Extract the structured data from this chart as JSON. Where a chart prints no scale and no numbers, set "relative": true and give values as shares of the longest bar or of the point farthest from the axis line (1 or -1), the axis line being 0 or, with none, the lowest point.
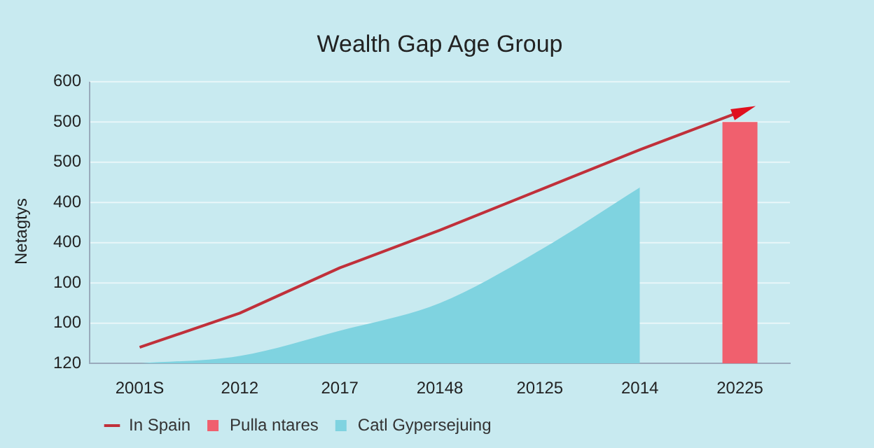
{
  "chart_data": {
    "type": "bar",
    "title": "Wealth Gap Age Group",
    "ylabel": "Netagtys",
    "relative": true,
    "categories": [
      "2001S",
      "2012",
      "2017",
      "20148",
      "20125",
      "2014",
      "20225"
    ],
    "series": [
      {
        "name": "Pulla ntares",
        "color": "#f0606e",
        "values": [
          null,
          null,
          null,
          null,
          null,
          null,
          0.96
        ]
      },
      {
        "name": "Catl Gypersejuing",
        "type": "area",
        "color": "#7fd3e0",
        "values": [
          0,
          0.03,
          0.13,
          0.24,
          0.45,
          0.7,
          null
        ]
      },
      {
        "name": "In Spain",
        "type": "line",
        "color": "#c0303a",
        "values": [
          0.064,
          0.2,
          0.38,
          0.53,
          0.69,
          0.85,
          1
        ]
      }
    ],
    "annotations": [
      "120",
      "100",
      "100",
      "400",
      "400",
      "500",
      "500",
      "600"
    ],
    "grid": "y",
    "legend": "bottom left",
    "marker": "none",
    "line_style": "solid"
  }
}
